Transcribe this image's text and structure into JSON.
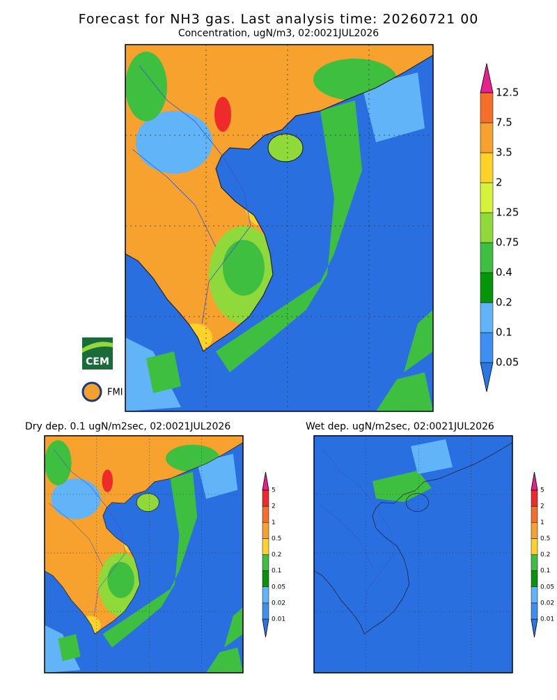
{
  "header": {
    "title": "Forecast for NH3 gas. Last analysis time: 20260721 00",
    "subtitle": "Concentration, ugN/m3, 02:0021JUL2026"
  },
  "main_map": {
    "colorbar": {
      "labels": [
        "0.05",
        "0.1",
        "0.2",
        "0.4",
        "0.75",
        "1.25",
        "2",
        "3.5",
        "7.5",
        "12.5"
      ],
      "colors": [
        "#2a78e4",
        "#3d8ff0",
        "#62b4f8",
        "#05940a",
        "#3fbf3f",
        "#8fd93a",
        "#d6f23a",
        "#ffd22a",
        "#f7a12e",
        "#f4702a",
        "#ee2a2a",
        "#e8208c"
      ]
    }
  },
  "dry_map": {
    "title": "Dry dep. 0.1 ugN/m2sec, 02:0021JUL2026",
    "colorbar": {
      "labels": [
        "0.01",
        "0.02",
        "0.05",
        "0.1",
        "0.2",
        "0.5",
        "1",
        "2",
        "5"
      ],
      "colors": [
        "#2a78e4",
        "#3d8ff0",
        "#62b4f8",
        "#05940a",
        "#3fbf3f",
        "#ffd22a",
        "#f7a12e",
        "#f4702a",
        "#ee2a2a",
        "#e8208c"
      ]
    }
  },
  "wet_map": {
    "title": "Wet dep. ugN/m2sec, 02:0021JUL2026",
    "colorbar": {
      "labels": [
        "0.01",
        "0.02",
        "0.05",
        "0.1",
        "0.2",
        "0.5",
        "1",
        "2",
        "5"
      ],
      "colors": [
        "#2a78e4",
        "#3d8ff0",
        "#62b4f8",
        "#05940a",
        "#3fbf3f",
        "#ffd22a",
        "#f7a12e",
        "#f4702a",
        "#ee2a2a",
        "#e8208c"
      ]
    }
  },
  "logos": [
    "CEM",
    "FMI"
  ]
}
